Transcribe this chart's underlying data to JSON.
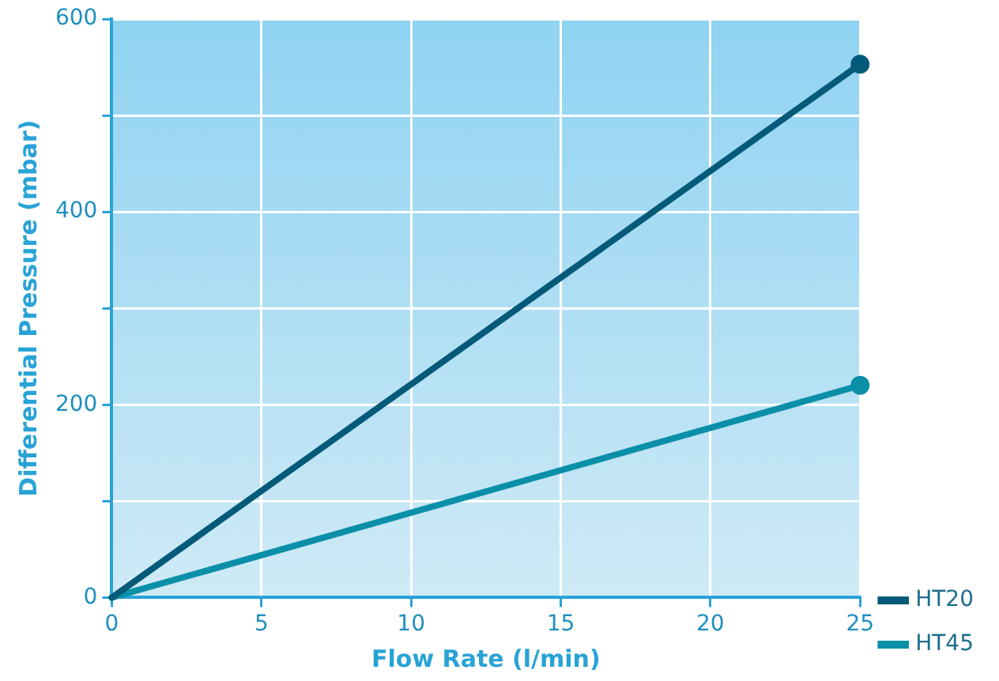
{
  "chart_data": {
    "type": "line",
    "xlabel": "Flow Rate (l/min)",
    "ylabel": "Differential Pressure (mbar)",
    "x": [
      0,
      25
    ],
    "series": [
      {
        "name": "HT20",
        "color": "#045a78",
        "values": [
          0,
          553
        ]
      },
      {
        "name": "HT45",
        "color": "#0a8fa8",
        "values": [
          0,
          220
        ]
      }
    ],
    "xlim": [
      0,
      25
    ],
    "xticks": [
      0,
      5,
      10,
      15,
      20,
      25
    ],
    "ylim": [
      0,
      600
    ],
    "yticks": [
      0,
      {
        "value": 100,
        "label": null
      },
      200,
      {
        "value": 300,
        "label": null
      },
      400,
      {
        "value": 500,
        "label": null
      },
      600
    ],
    "grid": true,
    "legend": "bottom right",
    "marker": "circle",
    "line_style": "solid"
  }
}
